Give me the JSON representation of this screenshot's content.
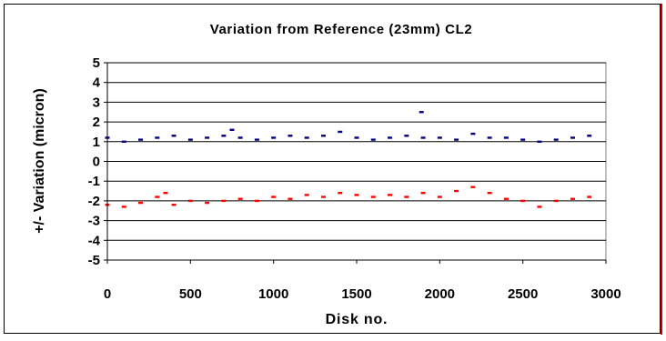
{
  "chart_data": {
    "type": "scatter",
    "title": "Variation from Reference (23mm) CL2",
    "xlabel": "Disk no.",
    "ylabel": "+/- Variation (micron)",
    "xlim": [
      0,
      3000
    ],
    "ylim": [
      -5,
      5
    ],
    "xticks": [
      0,
      500,
      1000,
      1500,
      2000,
      2500,
      3000
    ],
    "yticks": [
      5,
      4,
      3,
      2,
      1,
      0,
      -1,
      -2,
      -3,
      -4,
      -5
    ],
    "grid": "horizontal major gridlines",
    "legend": "none",
    "marker": "short dash",
    "series": [
      {
        "color": "#000080",
        "x": [
          0,
          100,
          200,
          300,
          400,
          500,
          600,
          700,
          750,
          800,
          900,
          1000,
          1100,
          1200,
          1300,
          1400,
          1500,
          1600,
          1700,
          1800,
          1890,
          1900,
          2000,
          2100,
          2200,
          2300,
          2400,
          2500,
          2600,
          2700,
          2800,
          2900
        ],
        "y": [
          1.2,
          1.0,
          1.1,
          1.2,
          1.3,
          1.1,
          1.2,
          1.3,
          1.6,
          1.2,
          1.1,
          1.2,
          1.3,
          1.2,
          1.3,
          1.5,
          1.2,
          1.1,
          1.2,
          1.3,
          2.5,
          1.2,
          1.2,
          1.1,
          1.4,
          1.2,
          1.2,
          1.1,
          1.0,
          1.1,
          1.2,
          1.3
        ]
      },
      {
        "color": "#ff0000",
        "x": [
          0,
          100,
          200,
          300,
          350,
          400,
          500,
          600,
          700,
          800,
          900,
          1000,
          1100,
          1200,
          1300,
          1400,
          1500,
          1600,
          1700,
          1800,
          1900,
          2000,
          2100,
          2200,
          2300,
          2400,
          2500,
          2600,
          2700,
          2800,
          2900
        ],
        "y": [
          -2.2,
          -2.3,
          -2.1,
          -1.8,
          -1.6,
          -2.2,
          -2.0,
          -2.1,
          -2.0,
          -1.9,
          -2.0,
          -1.8,
          -1.9,
          -1.7,
          -1.8,
          -1.6,
          -1.7,
          -1.8,
          -1.7,
          -1.8,
          -1.6,
          -1.8,
          -1.5,
          -1.3,
          -1.6,
          -1.9,
          -2.0,
          -2.3,
          -2.0,
          -1.9,
          -1.8
        ]
      }
    ]
  }
}
